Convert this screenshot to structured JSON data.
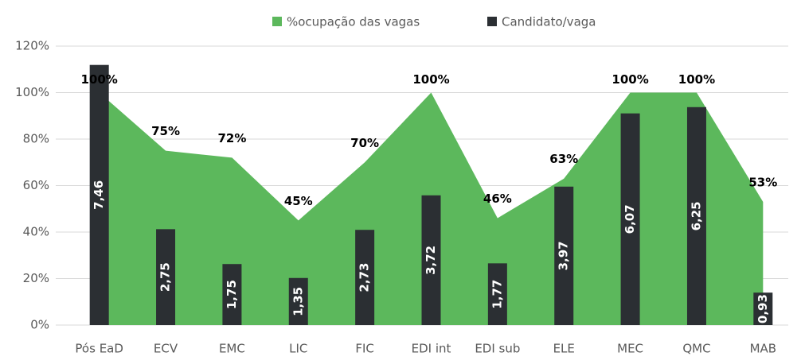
{
  "chart_data": {
    "type": "area_bar",
    "categories": [
      "Pós EaD",
      "ECV",
      "EMC",
      "LIC",
      "FIC",
      "EDI int",
      "EDI sub",
      "ELE",
      "MEC",
      "QMC",
      "MAB"
    ],
    "series": [
      {
        "name": "%ocupação das vagas",
        "color": "#5cb85c",
        "type": "area",
        "values": [
          100,
          75,
          72,
          45,
          70,
          100,
          46,
          63,
          100,
          100,
          53
        ],
        "value_labels": [
          "100%",
          "75%",
          "72%",
          "45%",
          "70%",
          "100%",
          "46%",
          "63%",
          "100%",
          "100%",
          "53%"
        ]
      },
      {
        "name": "Candidato/vaga",
        "color": "#2b2f33",
        "type": "bar",
        "axis": "y2",
        "values": [
          7.46,
          2.75,
          1.75,
          1.35,
          2.73,
          3.72,
          1.77,
          3.97,
          6.07,
          6.25,
          0.93
        ],
        "value_labels": [
          "7,46",
          "2,75",
          "1,75",
          "1,35",
          "2,73",
          "3,72",
          "1,77",
          "3,97",
          "6,07",
          "6,25",
          "0,93"
        ]
      }
    ],
    "ylim": [
      0,
      120
    ],
    "yticks": [
      {
        "value": 0,
        "label": "0%"
      },
      {
        "value": 20,
        "label": "20%"
      },
      {
        "value": 40,
        "label": "40%"
      },
      {
        "value": 60,
        "label": "60%"
      },
      {
        "value": 80,
        "label": "80%"
      },
      {
        "value": 100,
        "label": "100%"
      },
      {
        "value": 120,
        "label": "120%"
      }
    ],
    "y2lim": [
      0,
      8
    ],
    "grid": true,
    "legend": "top"
  }
}
